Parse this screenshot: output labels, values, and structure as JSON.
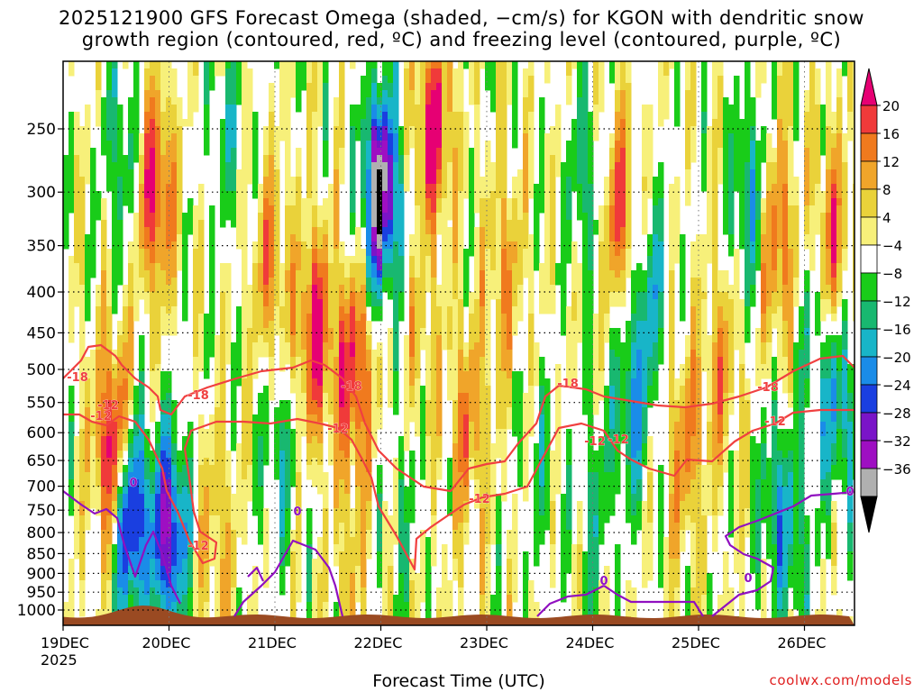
{
  "title_line1": "2025121900 GFS Forecast Omega (shaded, −cm/s) for KGON with dendritic snow",
  "title_line2": "growth region (contoured, red, ºC) and freezing level (contoured, purple, ºC)",
  "credit": "coolwx.com/models",
  "chart_data": {
    "type": "heatmap",
    "title": "2025121900 GFS Forecast Omega (shaded, −cm/s) for KGON with dendritic snow growth region (contoured, red, ºC) and freezing level (contoured, purple, ºC)",
    "xlabel": "Forecast Time (UTC)",
    "ylabel": "",
    "x_ticks": [
      "19DEC\n2025",
      "20DEC",
      "21DEC",
      "22DEC",
      "23DEC",
      "24DEC",
      "25DEC",
      "26DEC"
    ],
    "y_ticks": [
      250,
      300,
      350,
      400,
      450,
      500,
      550,
      600,
      650,
      700,
      750,
      800,
      850,
      900,
      950,
      1000
    ],
    "y_scale": "log-pressure (inverted)",
    "xlim": [
      "19DEC 00Z",
      "26DEC 12Z"
    ],
    "ylim": [
      1025,
      200
    ],
    "grid": true,
    "colorbar": {
      "levels": [
        20,
        16,
        12,
        8,
        4,
        -4,
        -8,
        -12,
        -16,
        -20,
        -24,
        -28,
        -32,
        -36
      ],
      "colors": [
        "#e60073",
        "#f03a3a",
        "#f07a1e",
        "#f0a52a",
        "#ead23a",
        "#f7f07a",
        "#ffffff",
        "#19cc19",
        "#18b870",
        "#18b5c8",
        "#1a8ce8",
        "#1a3fe0",
        "#7a14c8",
        "#9e0fc2",
        "#b0b0b0",
        "#000000"
      ]
    },
    "contours": [
      {
        "name": "dendritic snow growth region",
        "color": "#f04040",
        "levels": [
          -18,
          -12
        ]
      },
      {
        "name": "freezing level",
        "color": "#9010c0",
        "levels": [
          0
        ]
      }
    ],
    "contour_labels": [
      "-18",
      "-12",
      "-18",
      "-12",
      "-18",
      "-12",
      "-18",
      "-12",
      "-12",
      "-12",
      "-18",
      "-12",
      "-12",
      "0",
      "0",
      "0",
      "0",
      "0"
    ],
    "omega_maxima": [
      {
        "time": "19DEC 12Z",
        "pressure": 620,
        "value": 20
      },
      {
        "time": "19DEC 15Z",
        "pressure": 760,
        "value": -32
      },
      {
        "time": "19DEC 21Z",
        "pressure": 300,
        "value": 20
      },
      {
        "time": "20DEC 00Z",
        "pressure": 800,
        "value": -28
      },
      {
        "time": "21DEC 09Z",
        "pressure": 450,
        "value": 20
      },
      {
        "time": "21DEC 18Z",
        "pressure": 500,
        "value": 20
      },
      {
        "time": "22DEC 00Z",
        "pressure": 300,
        "value": -36
      },
      {
        "time": "22DEC 12Z",
        "pressure": 250,
        "value": 20
      },
      {
        "time": "24DEC 06Z",
        "pressure": 320,
        "value": 16
      },
      {
        "time": "25DEC 18Z",
        "pressure": 350,
        "value": 16
      },
      {
        "time": "26DEC 06Z",
        "pressure": 350,
        "value": 16
      }
    ]
  }
}
